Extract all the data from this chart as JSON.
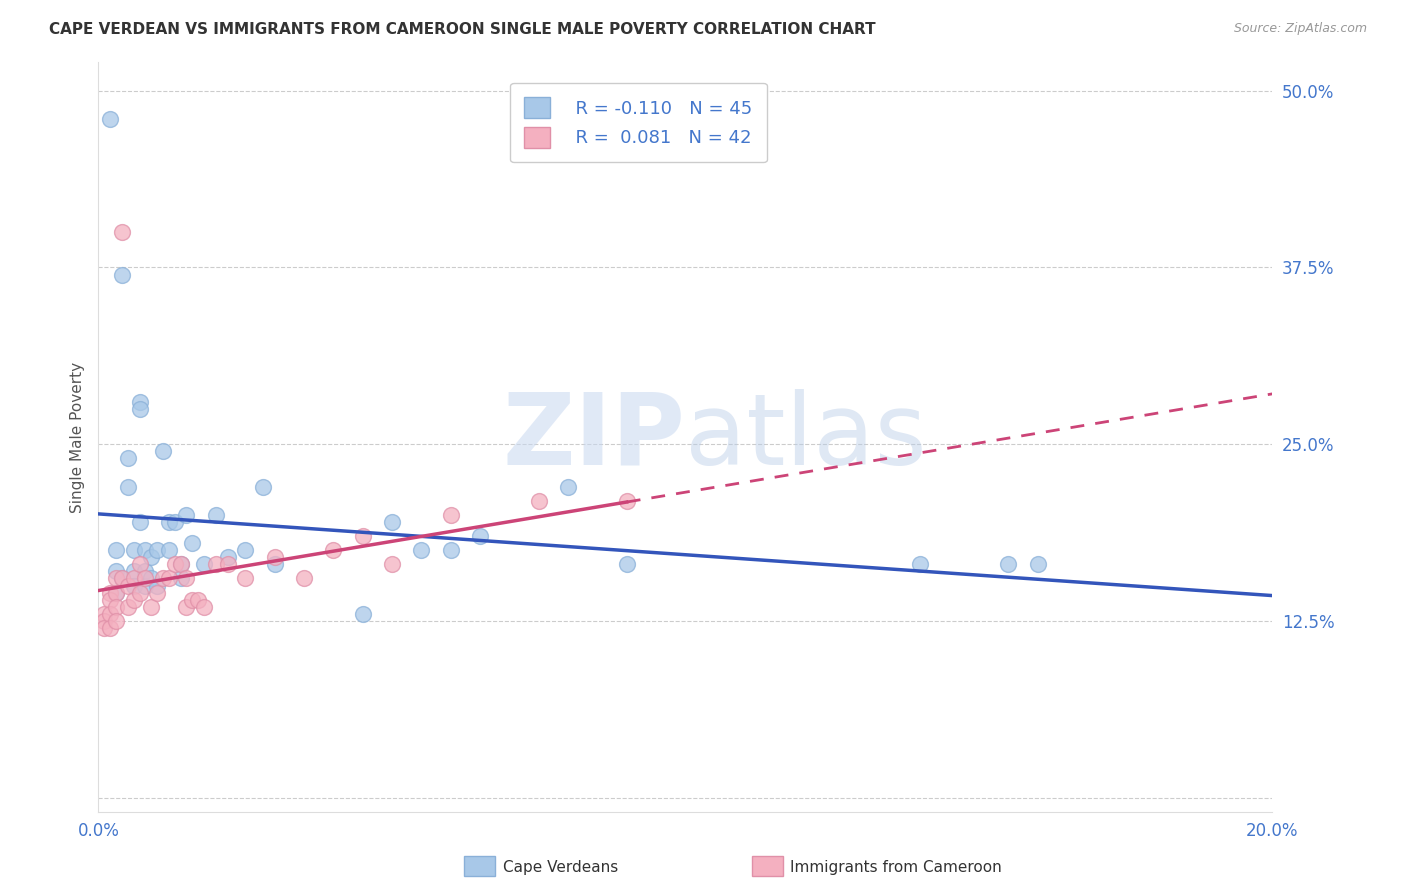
{
  "title": "CAPE VERDEAN VS IMMIGRANTS FROM CAMEROON SINGLE MALE POVERTY CORRELATION CHART",
  "source": "Source: ZipAtlas.com",
  "ylabel": "Single Male Poverty",
  "xlim": [
    0.0,
    0.2
  ],
  "ylim": [
    -0.01,
    0.52
  ],
  "yticks": [
    0.0,
    0.125,
    0.25,
    0.375,
    0.5
  ],
  "ytick_labels": [
    "",
    "12.5%",
    "25.0%",
    "37.5%",
    "50.0%"
  ],
  "xticks": [
    0.0,
    0.05,
    0.1,
    0.15,
    0.2
  ],
  "xtick_labels": [
    "0.0%",
    "",
    "",
    "",
    "20.0%"
  ],
  "grid_color": "#cccccc",
  "blue_color": "#a8c8e8",
  "pink_color": "#f4b0c0",
  "blue_edge_color": "#8ab0d8",
  "pink_edge_color": "#e090a8",
  "blue_line_color": "#3355bb",
  "pink_line_color": "#cc4477",
  "title_color": "#333333",
  "tick_label_color": "#4477cc",
  "watermark_zip_color": "#c8d8ec",
  "watermark_atlas_color": "#c0d0e8",
  "legend_R1": "-0.110",
  "legend_N1": "45",
  "legend_R2": "0.081",
  "legend_N2": "42",
  "blue_scatter_x": [
    0.002,
    0.003,
    0.003,
    0.003,
    0.004,
    0.004,
    0.005,
    0.005,
    0.006,
    0.006,
    0.006,
    0.007,
    0.007,
    0.007,
    0.008,
    0.008,
    0.008,
    0.009,
    0.009,
    0.01,
    0.01,
    0.011,
    0.012,
    0.012,
    0.013,
    0.014,
    0.014,
    0.015,
    0.016,
    0.018,
    0.02,
    0.022,
    0.025,
    0.028,
    0.03,
    0.045,
    0.05,
    0.055,
    0.06,
    0.065,
    0.08,
    0.09,
    0.14,
    0.155,
    0.16
  ],
  "blue_scatter_y": [
    0.48,
    0.175,
    0.16,
    0.145,
    0.37,
    0.155,
    0.24,
    0.22,
    0.175,
    0.16,
    0.15,
    0.28,
    0.275,
    0.195,
    0.175,
    0.16,
    0.15,
    0.17,
    0.155,
    0.175,
    0.15,
    0.245,
    0.195,
    0.175,
    0.195,
    0.165,
    0.155,
    0.2,
    0.18,
    0.165,
    0.2,
    0.17,
    0.175,
    0.22,
    0.165,
    0.13,
    0.195,
    0.175,
    0.175,
    0.185,
    0.22,
    0.165,
    0.165,
    0.165,
    0.165
  ],
  "pink_scatter_x": [
    0.001,
    0.001,
    0.001,
    0.002,
    0.002,
    0.002,
    0.002,
    0.003,
    0.003,
    0.003,
    0.003,
    0.004,
    0.004,
    0.005,
    0.005,
    0.006,
    0.006,
    0.007,
    0.007,
    0.008,
    0.009,
    0.01,
    0.011,
    0.012,
    0.013,
    0.014,
    0.015,
    0.015,
    0.016,
    0.017,
    0.018,
    0.02,
    0.022,
    0.025,
    0.03,
    0.035,
    0.04,
    0.045,
    0.05,
    0.06,
    0.075,
    0.09
  ],
  "pink_scatter_y": [
    0.13,
    0.125,
    0.12,
    0.145,
    0.14,
    0.13,
    0.12,
    0.155,
    0.145,
    0.135,
    0.125,
    0.4,
    0.155,
    0.15,
    0.135,
    0.155,
    0.14,
    0.165,
    0.145,
    0.155,
    0.135,
    0.145,
    0.155,
    0.155,
    0.165,
    0.165,
    0.155,
    0.135,
    0.14,
    0.14,
    0.135,
    0.165,
    0.165,
    0.155,
    0.17,
    0.155,
    0.175,
    0.185,
    0.165,
    0.2,
    0.21,
    0.21
  ],
  "figsize": [
    14.06,
    8.92
  ],
  "dpi": 100
}
